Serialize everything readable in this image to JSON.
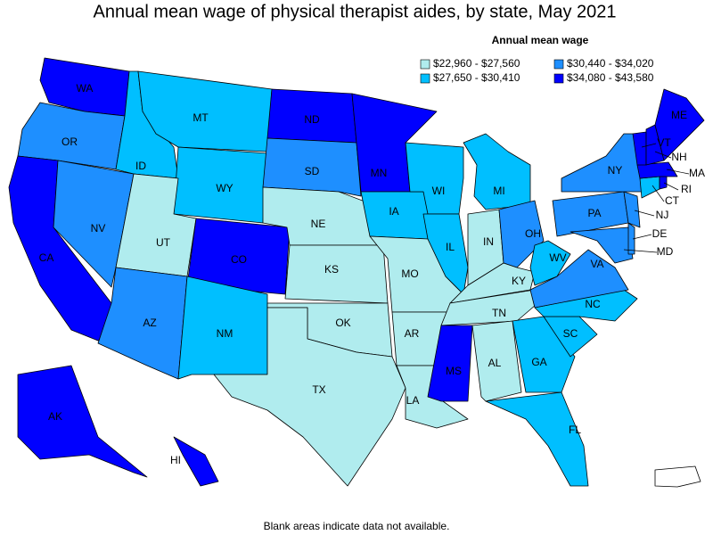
{
  "title": "Annual mean wage of physical therapist aides, by state, May 2021",
  "legend": {
    "title": "Annual mean wage",
    "classes": [
      {
        "label": "$22,960 - $27,560",
        "color": "#b0ecee"
      },
      {
        "label": "$27,650 - $30,410",
        "color": "#00bfff"
      },
      {
        "label": "$30,440 - $34,020",
        "color": "#1e8fff"
      },
      {
        "label": "$34,080 - $43,580",
        "color": "#0000ff"
      }
    ]
  },
  "states": [
    {
      "abbr": "WA",
      "class": 3
    },
    {
      "abbr": "OR",
      "class": 2
    },
    {
      "abbr": "CA",
      "class": 3
    },
    {
      "abbr": "NV",
      "class": 2
    },
    {
      "abbr": "ID",
      "class": 1
    },
    {
      "abbr": "MT",
      "class": 1
    },
    {
      "abbr": "WY",
      "class": 1
    },
    {
      "abbr": "UT",
      "class": 0
    },
    {
      "abbr": "CO",
      "class": 3
    },
    {
      "abbr": "AZ",
      "class": 2
    },
    {
      "abbr": "NM",
      "class": 1
    },
    {
      "abbr": "ND",
      "class": 3
    },
    {
      "abbr": "SD",
      "class": 2
    },
    {
      "abbr": "NE",
      "class": 0
    },
    {
      "abbr": "KS",
      "class": 0
    },
    {
      "abbr": "OK",
      "class": 0
    },
    {
      "abbr": "TX",
      "class": 0
    },
    {
      "abbr": "MN",
      "class": 3
    },
    {
      "abbr": "IA",
      "class": 1
    },
    {
      "abbr": "MO",
      "class": 0
    },
    {
      "abbr": "AR",
      "class": 0
    },
    {
      "abbr": "LA",
      "class": 0
    },
    {
      "abbr": "WI",
      "class": 1
    },
    {
      "abbr": "IL",
      "class": 1
    },
    {
      "abbr": "MI",
      "class": 1
    },
    {
      "abbr": "IN",
      "class": 0
    },
    {
      "abbr": "OH",
      "class": 2
    },
    {
      "abbr": "KY",
      "class": 0
    },
    {
      "abbr": "TN",
      "class": 0
    },
    {
      "abbr": "MS",
      "class": 3
    },
    {
      "abbr": "AL",
      "class": 0
    },
    {
      "abbr": "GA",
      "class": 1
    },
    {
      "abbr": "FL",
      "class": 1
    },
    {
      "abbr": "SC",
      "class": 1
    },
    {
      "abbr": "NC",
      "class": 1
    },
    {
      "abbr": "VA",
      "class": 2
    },
    {
      "abbr": "WV",
      "class": 1
    },
    {
      "abbr": "PA",
      "class": 2
    },
    {
      "abbr": "NY",
      "class": 2
    },
    {
      "abbr": "MD",
      "class": 2
    },
    {
      "abbr": "DE",
      "class": 2
    },
    {
      "abbr": "NJ",
      "class": 2
    },
    {
      "abbr": "CT",
      "class": 1
    },
    {
      "abbr": "RI",
      "class": 3
    },
    {
      "abbr": "MA",
      "class": 3
    },
    {
      "abbr": "VT",
      "class": 3
    },
    {
      "abbr": "NH",
      "class": 3
    },
    {
      "abbr": "ME",
      "class": 3
    },
    {
      "abbr": "AK",
      "class": 3
    },
    {
      "abbr": "HI",
      "class": 3
    }
  ],
  "footnote": "Blank areas indicate data not available."
}
